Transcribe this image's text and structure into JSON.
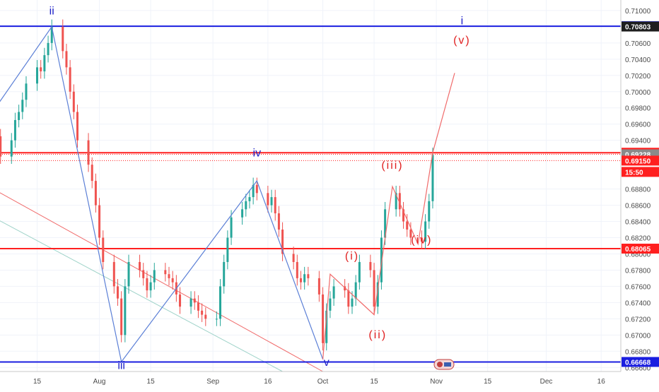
{
  "colors": {
    "background": "#ffffff",
    "grid": "#f0f3fa",
    "axis_text": "#4a4a4a",
    "candle_up": "#26a69a",
    "candle_down": "#ef5350",
    "wave_blue": "#1e22c8",
    "wave_red": "#e02020",
    "level_blue": "#1a1ee0",
    "level_red": "#ff1f1f",
    "trend_blue": "#5b7fd6",
    "trend_red": "#f06a6a",
    "channel_teal": "#9fd3c9"
  },
  "chart_data": {
    "type": "line",
    "instrument_hint": "FX pair daily candles",
    "ylim": [
      0.6655,
      0.7113
    ],
    "y_ticks": [
      "0.71000",
      "0.70600",
      "0.70400",
      "0.70200",
      "0.70000",
      "0.69800",
      "0.69600",
      "0.69400",
      "0.68800",
      "0.68600",
      "0.68400",
      "0.68200",
      "0.68000",
      "0.67800",
      "0.67600",
      "0.67400",
      "0.67200",
      "0.67000",
      "0.66800",
      "0.66600"
    ],
    "x_ticks": [
      {
        "label": "15",
        "date": "2019-07-15"
      },
      {
        "label": "Aug",
        "date": "2019-08-01"
      },
      {
        "label": "15",
        "date": "2019-08-15"
      },
      {
        "label": "Sep",
        "date": "2019-09-01"
      },
      {
        "label": "16",
        "date": "2019-09-16"
      },
      {
        "label": "Oct",
        "date": "2019-10-01"
      },
      {
        "label": "15",
        "date": "2019-10-15"
      },
      {
        "label": "Nov",
        "date": "2019-11-01"
      },
      {
        "label": "15",
        "date": "2019-11-15"
      },
      {
        "label": "Dec",
        "date": "2019-12-01"
      },
      {
        "label": "16",
        "date": "2019-12-16"
      }
    ],
    "price_badges": [
      {
        "label": "0.70807",
        "value": 0.70807,
        "kind": "line-blue"
      },
      {
        "label": "0.70803",
        "value": 0.70803,
        "kind": "dark"
      },
      {
        "label": "0.69247",
        "value": 0.69247,
        "kind": "line-red"
      },
      {
        "label": "0.69228",
        "value": 0.69228,
        "kind": "gray"
      },
      {
        "label": "0.69150",
        "value": 0.6915,
        "kind": "red"
      },
      {
        "label": "15:50",
        "value": null,
        "kind": "red-sub"
      },
      {
        "label": "0.68065",
        "value": 0.68065,
        "kind": "line-red"
      },
      {
        "label": "0.66668",
        "value": 0.66668,
        "kind": "line-blue"
      }
    ],
    "horizontal_levels": [
      {
        "value": 0.70807,
        "color": "blue"
      },
      {
        "value": 0.69247,
        "color": "red"
      },
      {
        "value": 0.68065,
        "color": "red"
      },
      {
        "value": 0.66668,
        "color": "blue"
      }
    ],
    "dotted_levels": [
      0.69228,
      0.6915
    ],
    "wave_labels": [
      {
        "text": "ii",
        "date": "2019-07-19",
        "value": 0.7095,
        "color": "blue"
      },
      {
        "text": "iii",
        "date": "2019-08-07",
        "value": 0.6658,
        "color": "blue"
      },
      {
        "text": "iv",
        "date": "2019-09-13",
        "value": 0.692,
        "color": "blue"
      },
      {
        "text": "v",
        "date": "2019-10-02",
        "value": 0.6662,
        "color": "blue"
      },
      {
        "text": "i",
        "date": "2019-11-08",
        "value": 0.7083,
        "color": "blue"
      },
      {
        "text": "(v)",
        "date": "2019-11-08",
        "value": 0.7059,
        "color": "red"
      },
      {
        "text": "(i)",
        "date": "2019-10-09",
        "value": 0.6793,
        "color": "red"
      },
      {
        "text": "(ii)",
        "date": "2019-10-16",
        "value": 0.6696,
        "color": "red"
      },
      {
        "text": "(iii)",
        "date": "2019-10-20",
        "value": 0.6905,
        "color": "red"
      },
      {
        "text": "(iv)",
        "date": "2019-10-28",
        "value": 0.6813,
        "color": "red"
      }
    ],
    "wave_path_blue": [
      {
        "date": "2019-07-03",
        "value": 0.6976
      },
      {
        "date": "2019-07-19",
        "value": 0.708
      },
      {
        "date": "2019-08-07",
        "value": 0.6667
      },
      {
        "date": "2019-09-13",
        "value": 0.689
      },
      {
        "date": "2019-10-01",
        "value": 0.667
      }
    ],
    "wave_path_red": [
      {
        "date": "2019-10-01",
        "value": 0.667
      },
      {
        "date": "2019-10-03",
        "value": 0.6775
      },
      {
        "date": "2019-10-15",
        "value": 0.6725
      },
      {
        "date": "2019-10-20",
        "value": 0.6883
      },
      {
        "date": "2019-10-27",
        "value": 0.6812
      },
      {
        "date": "2019-10-31",
        "value": 0.6925
      },
      {
        "date": "2019-11-06",
        "value": 0.7023
      }
    ],
    "diagonal_lines": [
      {
        "color": "red",
        "from": {
          "date": "2019-07-01",
          "value": 0.6885
        },
        "to": {
          "date": "2019-10-01",
          "value": 0.6655
        }
      },
      {
        "color": "teal",
        "from": {
          "date": "2019-07-01",
          "value": 0.685
        },
        "to": {
          "date": "2019-09-20",
          "value": 0.6655
        }
      }
    ],
    "candles_close": [
      {
        "date": "2019-07-01",
        "value": 0.6975
      },
      {
        "date": "2019-07-02",
        "value": 0.699
      },
      {
        "date": "2019-07-03",
        "value": 0.696
      },
      {
        "date": "2019-07-04",
        "value": 0.6945
      },
      {
        "date": "2019-07-05",
        "value": 0.692
      },
      {
        "date": "2019-07-08",
        "value": 0.694
      },
      {
        "date": "2019-07-09",
        "value": 0.6965
      },
      {
        "date": "2019-07-10",
        "value": 0.6975
      },
      {
        "date": "2019-07-11",
        "value": 0.699
      },
      {
        "date": "2019-07-12",
        "value": 0.701
      },
      {
        "date": "2019-07-15",
        "value": 0.703
      },
      {
        "date": "2019-07-16",
        "value": 0.7025
      },
      {
        "date": "2019-07-17",
        "value": 0.7045
      },
      {
        "date": "2019-07-18",
        "value": 0.706
      },
      {
        "date": "2019-07-19",
        "value": 0.708
      },
      {
        "date": "2019-07-22",
        "value": 0.705
      },
      {
        "date": "2019-07-23",
        "value": 0.703
      },
      {
        "date": "2019-07-24",
        "value": 0.7
      },
      {
        "date": "2019-07-25",
        "value": 0.6975
      },
      {
        "date": "2019-07-26",
        "value": 0.694
      },
      {
        "date": "2019-07-29",
        "value": 0.691
      },
      {
        "date": "2019-07-30",
        "value": 0.689
      },
      {
        "date": "2019-07-31",
        "value": 0.686
      },
      {
        "date": "2019-08-01",
        "value": 0.682
      },
      {
        "date": "2019-08-02",
        "value": 0.679
      },
      {
        "date": "2019-08-05",
        "value": 0.676
      },
      {
        "date": "2019-08-06",
        "value": 0.6745
      },
      {
        "date": "2019-08-07",
        "value": 0.67
      },
      {
        "date": "2019-08-08",
        "value": 0.676
      },
      {
        "date": "2019-08-09",
        "value": 0.679
      },
      {
        "date": "2019-08-12",
        "value": 0.678
      },
      {
        "date": "2019-08-13",
        "value": 0.677
      },
      {
        "date": "2019-08-14",
        "value": 0.6755
      },
      {
        "date": "2019-08-15",
        "value": 0.6765
      },
      {
        "date": "2019-08-16",
        "value": 0.678
      },
      {
        "date": "2019-08-19",
        "value": 0.6775
      },
      {
        "date": "2019-08-20",
        "value": 0.677
      },
      {
        "date": "2019-08-21",
        "value": 0.6765
      },
      {
        "date": "2019-08-22",
        "value": 0.675
      },
      {
        "date": "2019-08-23",
        "value": 0.6735
      },
      {
        "date": "2019-08-26",
        "value": 0.6745
      },
      {
        "date": "2019-08-27",
        "value": 0.674
      },
      {
        "date": "2019-08-28",
        "value": 0.673
      },
      {
        "date": "2019-08-29",
        "value": 0.6725
      },
      {
        "date": "2019-08-30",
        "value": 0.672
      },
      {
        "date": "2019-09-02",
        "value": 0.672
      },
      {
        "date": "2019-09-03",
        "value": 0.676
      },
      {
        "date": "2019-09-04",
        "value": 0.679
      },
      {
        "date": "2019-09-05",
        "value": 0.682
      },
      {
        "date": "2019-09-06",
        "value": 0.6845
      },
      {
        "date": "2019-09-09",
        "value": 0.6855
      },
      {
        "date": "2019-09-10",
        "value": 0.6865
      },
      {
        "date": "2019-09-11",
        "value": 0.687
      },
      {
        "date": "2019-09-12",
        "value": 0.6885
      },
      {
        "date": "2019-09-13",
        "value": 0.6875
      },
      {
        "date": "2019-09-16",
        "value": 0.686
      },
      {
        "date": "2019-09-17",
        "value": 0.687
      },
      {
        "date": "2019-09-18",
        "value": 0.685
      },
      {
        "date": "2019-09-19",
        "value": 0.683
      },
      {
        "date": "2019-09-20",
        "value": 0.68
      },
      {
        "date": "2019-09-23",
        "value": 0.679
      },
      {
        "date": "2019-09-24",
        "value": 0.677
      },
      {
        "date": "2019-09-25",
        "value": 0.6765
      },
      {
        "date": "2019-09-26",
        "value": 0.6775
      },
      {
        "date": "2019-09-27",
        "value": 0.677
      },
      {
        "date": "2019-09-30",
        "value": 0.675
      },
      {
        "date": "2019-10-01",
        "value": 0.669
      },
      {
        "date": "2019-10-02",
        "value": 0.673
      },
      {
        "date": "2019-10-03",
        "value": 0.6745
      },
      {
        "date": "2019-10-04",
        "value": 0.676
      },
      {
        "date": "2019-10-07",
        "value": 0.6755
      },
      {
        "date": "2019-10-08",
        "value": 0.6735
      },
      {
        "date": "2019-10-09",
        "value": 0.6745
      },
      {
        "date": "2019-10-10",
        "value": 0.6765
      },
      {
        "date": "2019-10-11",
        "value": 0.679
      },
      {
        "date": "2019-10-14",
        "value": 0.678
      },
      {
        "date": "2019-10-15",
        "value": 0.6735
      },
      {
        "date": "2019-10-16",
        "value": 0.6765
      },
      {
        "date": "2019-10-17",
        "value": 0.682
      },
      {
        "date": "2019-10-18",
        "value": 0.6855
      },
      {
        "date": "2019-10-21",
        "value": 0.6875
      },
      {
        "date": "2019-10-22",
        "value": 0.6855
      },
      {
        "date": "2019-10-23",
        "value": 0.684
      },
      {
        "date": "2019-10-24",
        "value": 0.683
      },
      {
        "date": "2019-10-25",
        "value": 0.682
      },
      {
        "date": "2019-10-28",
        "value": 0.6815
      },
      {
        "date": "2019-10-29",
        "value": 0.684
      },
      {
        "date": "2019-10-30",
        "value": 0.6865
      },
      {
        "date": "2019-10-31",
        "value": 0.6922
      }
    ]
  }
}
